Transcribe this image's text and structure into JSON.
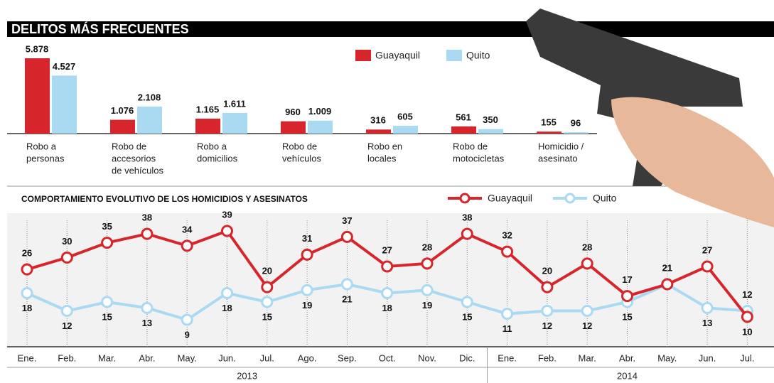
{
  "chart_data": [
    {
      "type": "bar",
      "title": "DELITOS MÁS FRECUENTES",
      "categories": [
        [
          "Robo a",
          "personas"
        ],
        [
          "Robo de",
          "accesorios",
          "de vehículos"
        ],
        [
          "Robo a",
          "domicilios"
        ],
        [
          "Robo de",
          "vehículos"
        ],
        [
          "Robo en",
          "locales"
        ],
        [
          "Robo de",
          "motocicletas"
        ],
        [
          "Homicidio /",
          "asesinato"
        ]
      ],
      "series": [
        {
          "name": "Guayaquil",
          "color": "#d7262b",
          "values": [
            5878,
            1076,
            1165,
            960,
            316,
            561,
            155
          ],
          "value_labels": [
            "5.878",
            "1.076",
            "1.165",
            "960",
            "316",
            "561",
            "155"
          ]
        },
        {
          "name": "Quito",
          "color": "#a9daf2",
          "values": [
            4527,
            2108,
            1611,
            1009,
            605,
            350,
            96
          ],
          "value_labels": [
            "4.527",
            "2.108",
            "1.611",
            "1.009",
            "605",
            "350",
            "96"
          ]
        }
      ]
    },
    {
      "type": "line",
      "title": "COMPORTAMIENTO EVOLUTIVO DE LOS HOMICIDIOS Y ASESINATOS",
      "categories": [
        "Ene.",
        "Feb.",
        "Mar.",
        "Abr.",
        "May.",
        "Jun.",
        "Jul.",
        "Ago.",
        "Sep.",
        "Oct.",
        "Nov.",
        "Dic.",
        "Ene.",
        "Feb.",
        "Mar.",
        "Abr.",
        "May.",
        "Jun.",
        "Jul."
      ],
      "year": [
        "2013",
        "2013",
        "2013",
        "2013",
        "2013",
        "2013",
        "2013",
        "2013",
        "2013",
        "2013",
        "2013",
        "2013",
        "2014",
        "2014",
        "2014",
        "2014",
        "2014",
        "2014",
        "2014"
      ],
      "series": [
        {
          "name": "Guayaquil",
          "color": "#d7262b",
          "values": [
            26,
            30,
            35,
            38,
            34,
            39,
            20,
            31,
            37,
            27,
            28,
            38,
            32,
            20,
            28,
            17,
            21,
            27,
            10
          ]
        },
        {
          "name": "Quito",
          "color": "#a9daf2",
          "values": [
            18,
            12,
            15,
            13,
            9,
            18,
            15,
            19,
            21,
            18,
            19,
            15,
            11,
            12,
            12,
            15,
            21,
            13,
            12
          ]
        }
      ]
    }
  ]
}
